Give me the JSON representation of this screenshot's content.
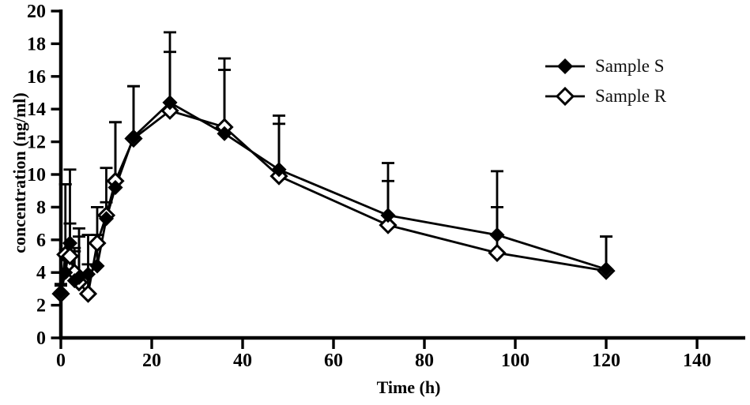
{
  "figure": {
    "background": "#ffffff",
    "ink_color": "#000000"
  },
  "chart_data": {
    "type": "line",
    "title": "",
    "xlabel": "Time (h)",
    "ylabel": "concentration (ng/ml)",
    "xlim": [
      0,
      150
    ],
    "ylim": [
      0,
      20
    ],
    "x_ticks": [
      0,
      20,
      40,
      60,
      80,
      100,
      120,
      140
    ],
    "y_ticks": [
      0,
      2,
      4,
      6,
      8,
      10,
      12,
      14,
      16,
      18,
      20
    ],
    "grid": false,
    "error_bars": "upper-only",
    "x": [
      0,
      1,
      2,
      3,
      4,
      6,
      8,
      10,
      12,
      16,
      24,
      36,
      48,
      72,
      96,
      120
    ],
    "series": [
      {
        "name": "Sample S",
        "marker": "filled-diamond",
        "color": "#000000",
        "values": [
          2.8,
          4.0,
          5.8,
          3.5,
          3.7,
          3.9,
          4.4,
          7.3,
          9.2,
          12.3,
          14.4,
          12.5,
          10.3,
          7.5,
          6.3,
          4.2
        ],
        "upper_errors": [
          0.5,
          1.4,
          4.5,
          1.8,
          2.5,
          2.4,
          1.9,
          3.1,
          4.0,
          3.1,
          4.3,
          3.9,
          3.3,
          3.2,
          3.9,
          2.0
        ]
      },
      {
        "name": "Sample R",
        "marker": "open-diamond",
        "color": "#000000",
        "values": [
          2.7,
          5.1,
          5.0,
          4.0,
          3.4,
          2.7,
          5.8,
          7.5,
          9.6,
          12.2,
          13.9,
          12.9,
          9.9,
          6.9,
          5.2,
          4.1
        ],
        "upper_errors": [
          0.5,
          4.3,
          2.0,
          1.5,
          3.3,
          1.8,
          2.2,
          0.8,
          3.6,
          3.2,
          3.6,
          4.2,
          3.2,
          2.7,
          2.8,
          2.1
        ]
      }
    ],
    "legend": {
      "position": "upper-right",
      "entries": [
        "Sample S",
        "Sample R"
      ]
    }
  }
}
